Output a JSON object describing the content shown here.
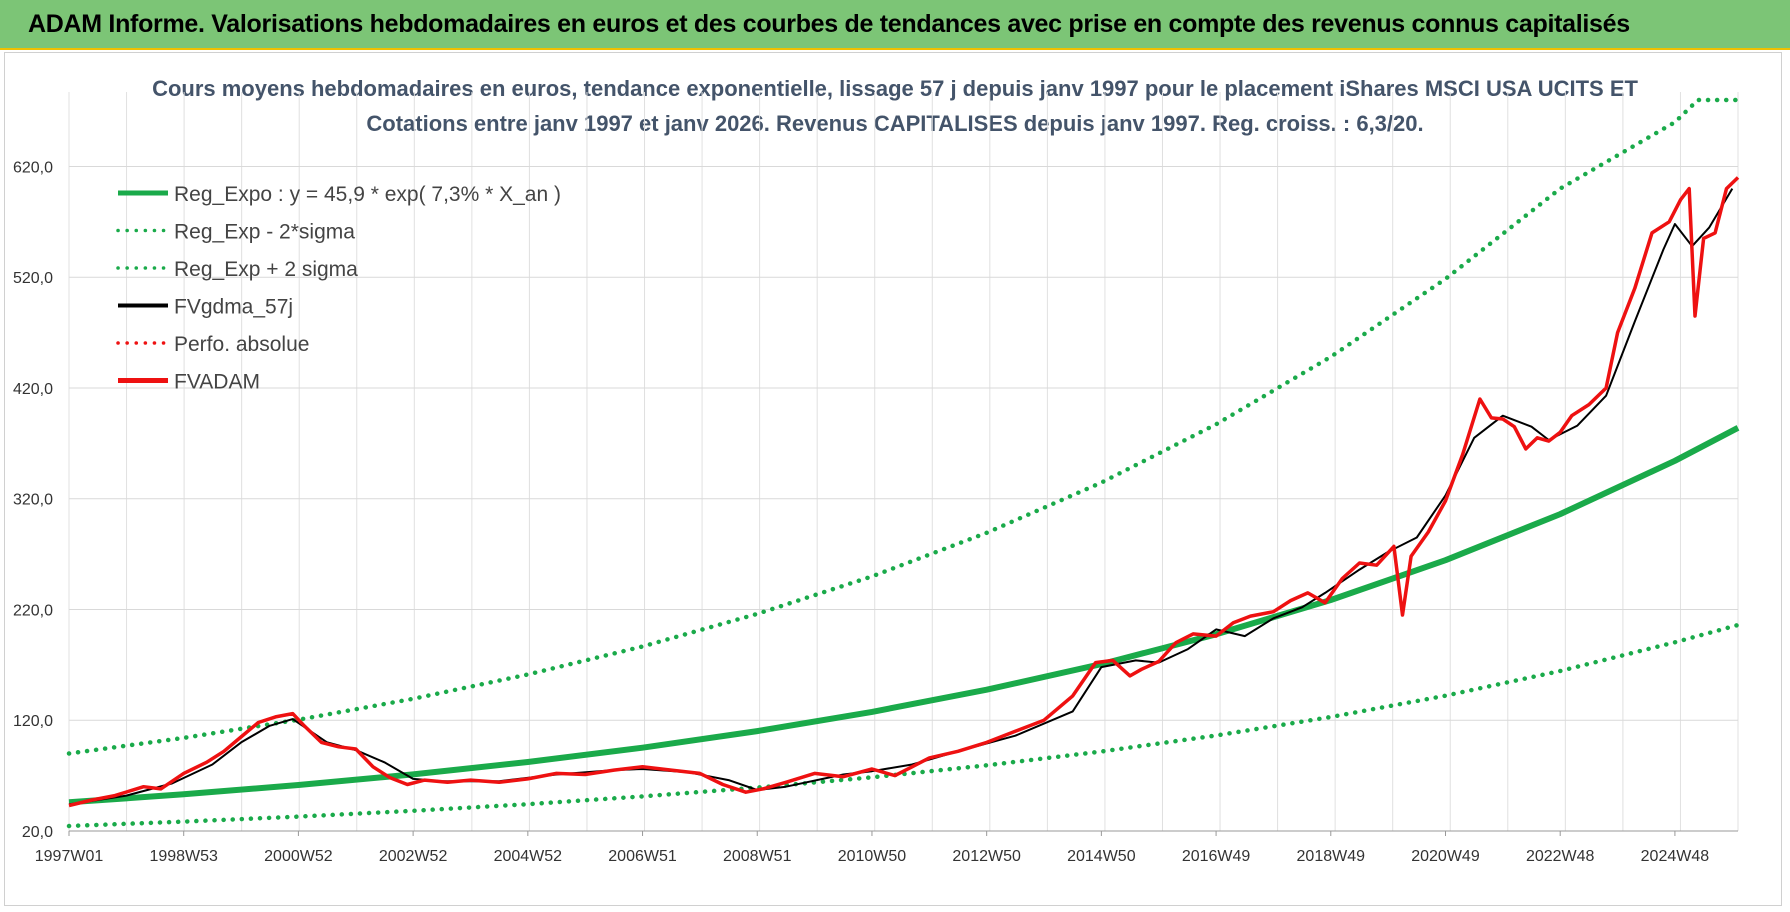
{
  "header": {
    "title": "ADAM Informe. Valorisations hebdomadaires en euros et des courbes de tendances avec prise en compte des revenus connus capitalisés"
  },
  "colors": {
    "banner": "#7cc576",
    "reg_green": "#1aaa4a",
    "fvadam_red": "#ee1111",
    "fvgdma_black": "#000000",
    "title_text": "#44546a"
  },
  "chart_data": {
    "type": "line",
    "title": "Cours moyens hebdomadaires en euros, tendance exponentielle, lissage 57 j depuis janv 1997 pour le placement iShares MSCI USA UCITS ET",
    "subtitle": "Cotations entre janv 1997 et janv 2026. Revenus CAPITALISES depuis janv 1997. Reg. croiss. : 6,3/20.",
    "xlabel": "",
    "ylabel": "",
    "ylim": [
      20,
      680
    ],
    "xlim": [
      1997.0,
      2026.1
    ],
    "grid": true,
    "legend_placement": "top-left",
    "y_ticks": [
      "20,0",
      "120,0",
      "220,0",
      "320,0",
      "420,0",
      "520,0",
      "620,0"
    ],
    "y_tick_values": [
      20,
      120,
      220,
      320,
      420,
      520,
      620
    ],
    "x_ticks": [
      "1997W01",
      "1998W53",
      "2000W52",
      "2002W52",
      "2004W52",
      "2006W51",
      "2008W51",
      "2010W50",
      "2012W50",
      "2014W50",
      "2016W49",
      "2018W49",
      "2020W49",
      "2022W48",
      "2024W48"
    ],
    "x_tick_values": [
      1997.0,
      1999.0,
      2001.0,
      2003.0,
      2005.0,
      2007.0,
      2009.0,
      2011.0,
      2013.0,
      2015.0,
      2017.0,
      2019.0,
      2021.0,
      2023.0,
      2025.0
    ],
    "series": [
      {
        "name": "Reg_Expo : y = 45,9 * exp( 7,3% *  X_an )",
        "style": "solid-thick",
        "color": "#1aaa4a",
        "x": [
          1997,
          1999,
          2001,
          2003,
          2005,
          2007,
          2009,
          2011,
          2013,
          2015,
          2017,
          2019,
          2021,
          2023,
          2025,
          2026.1
        ],
        "values": [
          45.9,
          53.1,
          61.5,
          71.1,
          82.3,
          95.2,
          110.2,
          127.5,
          147.6,
          170.7,
          197.6,
          228.6,
          264.5,
          306.1,
          354.2,
          384.0
        ]
      },
      {
        "name": "Reg_Exp - 2*sigma",
        "style": "dotted",
        "color": "#1aaa4a",
        "x": [
          1997,
          1999,
          2001,
          2003,
          2005,
          2007,
          2009,
          2011,
          2013,
          2015,
          2017,
          2019,
          2021,
          2023,
          2025,
          2026.1
        ],
        "values": [
          24.5,
          28.5,
          33.0,
          38.2,
          44.2,
          51.2,
          59.2,
          68.5,
          79.3,
          91.8,
          106.2,
          122.9,
          142.2,
          164.5,
          190.4,
          206.0
        ]
      },
      {
        "name": "Reg_Exp + 2 sigma",
        "style": "dotted",
        "color": "#1aaa4a",
        "x": [
          1997,
          1999,
          2001,
          2003,
          2005,
          2007,
          2009,
          2011,
          2013,
          2015,
          2017,
          2019,
          2021,
          2023,
          2025,
          2025.4,
          2026.1
        ],
        "values": [
          90.0,
          104.1,
          120.5,
          139.4,
          161.3,
          186.6,
          216.0,
          249.9,
          289.2,
          334.6,
          387.2,
          448.1,
          518.5,
          600.0,
          660.0,
          680.0,
          680.0
        ]
      },
      {
        "name": "FVgdma_57j",
        "style": "solid",
        "color": "#000000",
        "x": [
          1997.0,
          1998.0,
          1998.8,
          1999.5,
          2000.0,
          2000.5,
          2000.9,
          2001.5,
          2002.0,
          2002.5,
          2003.0,
          2003.5,
          2004.5,
          2005.5,
          2006.5,
          2007.0,
          2007.8,
          2008.5,
          2009.0,
          2009.5,
          2010.5,
          2011.0,
          2011.7,
          2012.5,
          2013.5,
          2014.5,
          2015.0,
          2015.6,
          2016.0,
          2016.5,
          2017.0,
          2017.5,
          2018.0,
          2018.5,
          2018.9,
          2019.5,
          2020.0,
          2020.5,
          2021.0,
          2021.5,
          2022.0,
          2022.5,
          2022.8,
          2023.3,
          2023.8,
          2024.3,
          2024.8,
          2025.0,
          2025.3,
          2025.6,
          2026.0
        ],
        "values": [
          44,
          52,
          63,
          80,
          100,
          115,
          121,
          100,
          93,
          82,
          67,
          65,
          65,
          71,
          75,
          76,
          73,
          66,
          57,
          60,
          71,
          74,
          80,
          92,
          106,
          128,
          168,
          174,
          172,
          184,
          202,
          196,
          212,
          222,
          235,
          256,
          272,
          285,
          323,
          375,
          395,
          385,
          373,
          386,
          413,
          480,
          545,
          568,
          548,
          565,
          600
        ]
      },
      {
        "name": "Perfo. absolue",
        "style": "dotted",
        "color": "#ee1111",
        "x": [],
        "values": []
      },
      {
        "name": "FVADAM",
        "style": "solid-thick",
        "color": "#ee1111",
        "x": [
          1997.0,
          1997.4,
          1997.8,
          1998.3,
          1998.6,
          1999.0,
          1999.4,
          1999.7,
          2000.0,
          2000.3,
          2000.6,
          2000.9,
          2001.1,
          2001.4,
          2001.7,
          2002.0,
          2002.3,
          2002.6,
          2002.9,
          2003.2,
          2003.6,
          2004.0,
          2004.5,
          2005.0,
          2005.5,
          2006.0,
          2006.5,
          2007.0,
          2007.5,
          2008.0,
          2008.4,
          2008.8,
          2009.1,
          2009.5,
          2010.0,
          2010.5,
          2011.0,
          2011.4,
          2011.7,
          2012.0,
          2012.5,
          2013.0,
          2013.5,
          2014.0,
          2014.5,
          2014.9,
          2015.2,
          2015.5,
          2015.7,
          2016.0,
          2016.3,
          2016.6,
          2017.0,
          2017.3,
          2017.6,
          2018.0,
          2018.3,
          2018.6,
          2018.9,
          2019.2,
          2019.5,
          2019.8,
          2020.1,
          2020.25,
          2020.4,
          2020.7,
          2021.0,
          2021.3,
          2021.6,
          2021.8,
          2022.0,
          2022.2,
          2022.4,
          2022.6,
          2022.8,
          2023.0,
          2023.2,
          2023.5,
          2023.8,
          2024.0,
          2024.3,
          2024.6,
          2024.9,
          2025.1,
          2025.25,
          2025.35,
          2025.5,
          2025.7,
          2025.9,
          2026.1
        ],
        "values": [
          43,
          48,
          52,
          60,
          58,
          72,
          82,
          92,
          105,
          118,
          123,
          126,
          115,
          100,
          96,
          94,
          78,
          68,
          62,
          66,
          64,
          66,
          64,
          67,
          72,
          71,
          75,
          78,
          75,
          72,
          62,
          55,
          58,
          64,
          72,
          69,
          76,
          70,
          78,
          86,
          92,
          100,
          110,
          120,
          142,
          172,
          174,
          160,
          166,
          173,
          190,
          198,
          196,
          208,
          214,
          218,
          228,
          235,
          226,
          248,
          262,
          260,
          277,
          215,
          268,
          290,
          318,
          360,
          410,
          393,
          392,
          385,
          365,
          375,
          372,
          380,
          395,
          405,
          420,
          470,
          510,
          560,
          570,
          590,
          600,
          485,
          555,
          560,
          600,
          610
        ]
      }
    ]
  }
}
